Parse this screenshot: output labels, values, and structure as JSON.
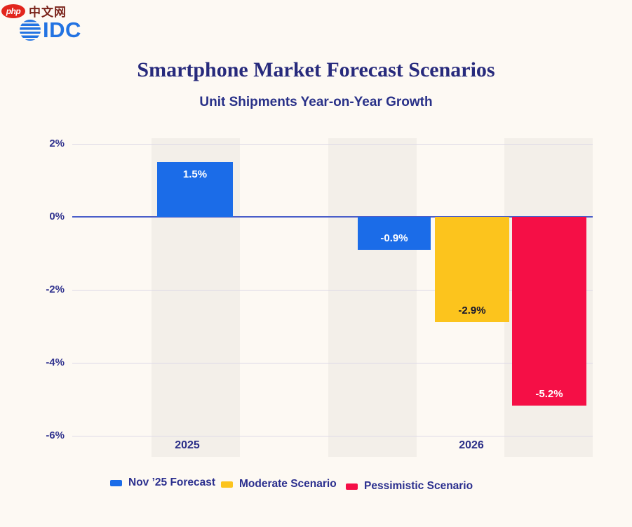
{
  "watermark": {
    "badge": "php",
    "site": "中文网"
  },
  "brand": {
    "name": "IDC"
  },
  "header": {
    "title": "Smartphone Market Forecast Scenarios",
    "subtitle": "Unit Shipments Year-on-Year Growth"
  },
  "colors": {
    "background": "#fdf9f3",
    "column_band": "#f3efe9",
    "navy_text": "#2b2e83",
    "blue_bar": "#1b6ce8",
    "yellow_bar": "#fcc41d",
    "red_bar": "#f50f46",
    "gridline": "#ddd9e6",
    "zero_line": "#4a5ec9",
    "idc_blue": "#2273e2",
    "php_red": "#e2251c"
  },
  "chart_data": {
    "type": "bar",
    "title": "Smartphone Market Forecast Scenarios",
    "subtitle": "Unit Shipments Year-on-Year Growth",
    "categories": [
      "2025",
      "2026"
    ],
    "series": [
      {
        "name": "Nov ’25 Forecast",
        "color": "#1b6ce8",
        "values": [
          1.5,
          -0.9
        ],
        "labels": [
          "1.5%",
          "-0.9%"
        ]
      },
      {
        "name": "Moderate Scenario",
        "color": "#fcc41d",
        "values": [
          null,
          -2.9
        ],
        "labels": [
          null,
          "-2.9%"
        ]
      },
      {
        "name": "Pessimistic Scenario",
        "color": "#f50f46",
        "values": [
          null,
          -5.2
        ],
        "labels": [
          null,
          "-5.2%"
        ]
      }
    ],
    "xlabel": "",
    "ylabel": "",
    "ylim": [
      -6,
      2
    ],
    "yticks": [
      "2%",
      "0%",
      "-2%",
      "-4%",
      "-6%"
    ],
    "grid": true,
    "legend_position": "bottom"
  }
}
